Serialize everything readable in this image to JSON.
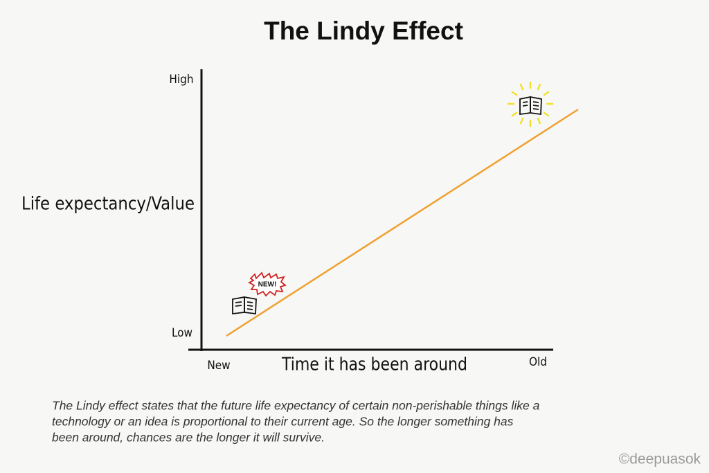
{
  "title": "The Lindy Effect",
  "y_axis": {
    "label": "Life expectancy/Value",
    "high": "High",
    "low": "Low"
  },
  "x_axis": {
    "label": "Time it has been around",
    "start": "New",
    "end": "Old"
  },
  "badge": "NEW!",
  "caption": {
    "lines": [
      "The Lindy effect states that the future life expectancy of certain non-perishable things like a",
      "technology or an idea is proportional to their current age. So the longer something has",
      "been around, chances are the longer it will survive."
    ]
  },
  "credit": "©deepuasok"
}
